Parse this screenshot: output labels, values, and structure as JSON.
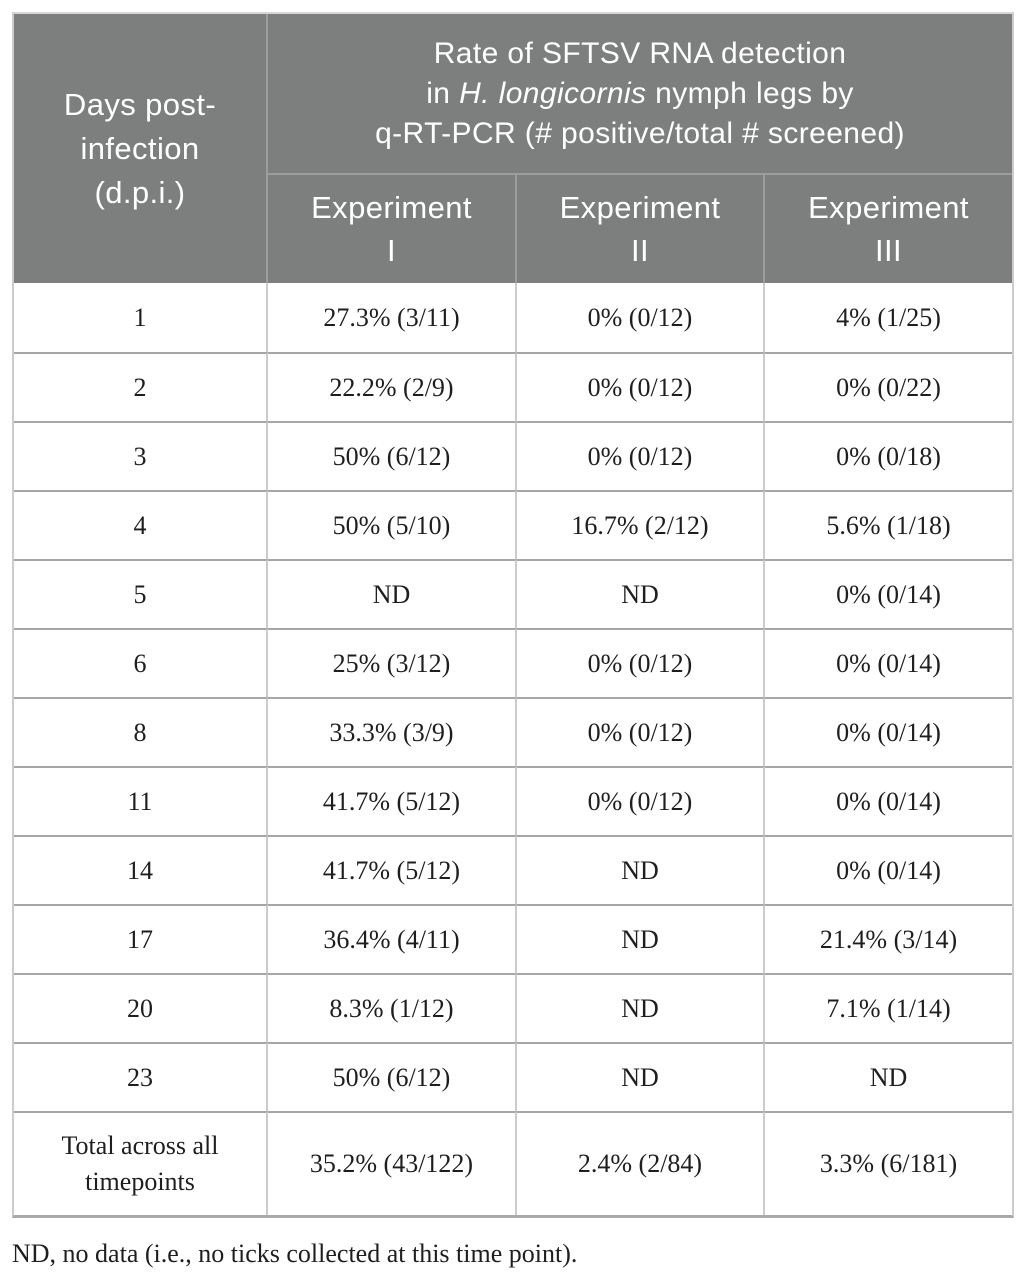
{
  "colors": {
    "header_background": "#7d7f7e",
    "header_text": "#ffffff",
    "header_divider": "#9c9d9d",
    "body_row_border": "#a6a6a6",
    "body_column_border": "#cbcbcb",
    "body_text": "#1e1e1e"
  },
  "table": {
    "corner_header": {
      "line1": "Days post-",
      "line2": "infection",
      "line3": "(d.p.i.)"
    },
    "span_header": {
      "line1": "Rate of SFTSV RNA detection",
      "line2_prefix": "in ",
      "line2_italic": "H. longicornis",
      "line2_suffix": " nymph legs by",
      "line3": "q-RT-PCR (# positive/total # screened)"
    },
    "experiment_headers": [
      {
        "word": "Experiment",
        "numeral": "I"
      },
      {
        "word": "Experiment",
        "numeral": "II"
      },
      {
        "word": "Experiment",
        "numeral": "III"
      }
    ],
    "rows": [
      {
        "dpi": "1",
        "exp1": "27.3% (3/11)",
        "exp2": "0% (0/12)",
        "exp3": "4% (1/25)"
      },
      {
        "dpi": "2",
        "exp1": "22.2% (2/9)",
        "exp2": "0% (0/12)",
        "exp3": "0% (0/22)"
      },
      {
        "dpi": "3",
        "exp1": "50% (6/12)",
        "exp2": "0% (0/12)",
        "exp3": "0% (0/18)"
      },
      {
        "dpi": "4",
        "exp1": "50% (5/10)",
        "exp2": "16.7% (2/12)",
        "exp3": "5.6% (1/18)"
      },
      {
        "dpi": "5",
        "exp1": "ND",
        "exp2": "ND",
        "exp3": "0% (0/14)"
      },
      {
        "dpi": "6",
        "exp1": "25% (3/12)",
        "exp2": "0% (0/12)",
        "exp3": "0% (0/14)"
      },
      {
        "dpi": "8",
        "exp1": "33.3% (3/9)",
        "exp2": "0% (0/12)",
        "exp3": "0% (0/14)"
      },
      {
        "dpi": "11",
        "exp1": "41.7% (5/12)",
        "exp2": "0% (0/12)",
        "exp3": "0% (0/14)"
      },
      {
        "dpi": "14",
        "exp1": "41.7% (5/12)",
        "exp2": "ND",
        "exp3": "0% (0/14)"
      },
      {
        "dpi": "17",
        "exp1": "36.4% (4/11)",
        "exp2": "ND",
        "exp3": "21.4% (3/14)"
      },
      {
        "dpi": "20",
        "exp1": "8.3% (1/12)",
        "exp2": "ND",
        "exp3": "7.1% (1/14)"
      },
      {
        "dpi": "23",
        "exp1": "50% (6/12)",
        "exp2": "ND",
        "exp3": "ND"
      }
    ],
    "total": {
      "label": "Total across all timepoints",
      "exp1": "35.2% (43/122)",
      "exp2": "2.4% (2/84)",
      "exp3": "3.3% (6/181)"
    },
    "footnote": "ND, no data (i.e., no ticks collected at this time point)."
  }
}
